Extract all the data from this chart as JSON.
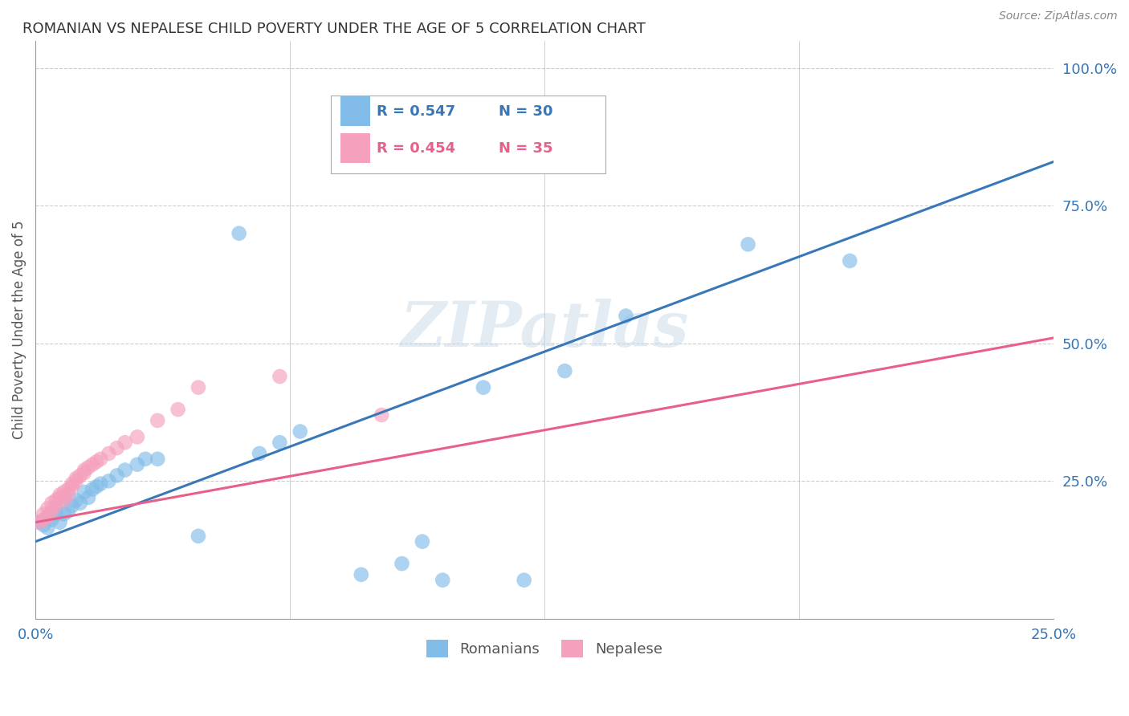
{
  "title": "ROMANIAN VS NEPALESE CHILD POVERTY UNDER THE AGE OF 5 CORRELATION CHART",
  "source": "Source: ZipAtlas.com",
  "ylabel": "Child Poverty Under the Age of 5",
  "ytick_labels": [
    "100.0%",
    "75.0%",
    "50.0%",
    "25.0%"
  ],
  "ytick_values": [
    1.0,
    0.75,
    0.5,
    0.25
  ],
  "watermark": "ZIPatlas",
  "legend_label1": "Romanians",
  "legend_label2": "Nepalese",
  "blue_color": "#82bce8",
  "pink_color": "#f5a0bc",
  "blue_line_color": "#3878b8",
  "pink_line_color": "#e8608a",
  "roman_scatter_x": [
    0.001,
    0.002,
    0.003,
    0.003,
    0.004,
    0.005,
    0.005,
    0.006,
    0.007,
    0.007,
    0.008,
    0.009,
    0.01,
    0.011,
    0.012,
    0.013,
    0.014,
    0.015,
    0.016,
    0.018,
    0.02,
    0.022,
    0.025,
    0.027,
    0.03,
    0.055,
    0.06,
    0.065,
    0.08,
    0.095,
    0.1,
    0.12,
    0.145,
    0.2,
    0.05,
    0.13,
    0.175,
    0.09,
    0.04,
    0.11
  ],
  "roman_scatter_y": [
    0.175,
    0.17,
    0.185,
    0.165,
    0.18,
    0.19,
    0.2,
    0.175,
    0.19,
    0.22,
    0.195,
    0.205,
    0.215,
    0.21,
    0.23,
    0.22,
    0.235,
    0.24,
    0.245,
    0.25,
    0.26,
    0.27,
    0.28,
    0.29,
    0.29,
    0.3,
    0.32,
    0.34,
    0.08,
    0.14,
    0.07,
    0.07,
    0.55,
    0.65,
    0.7,
    0.45,
    0.68,
    0.1,
    0.15,
    0.42
  ],
  "nepal_scatter_x": [
    0.001,
    0.002,
    0.002,
    0.003,
    0.003,
    0.004,
    0.004,
    0.005,
    0.005,
    0.006,
    0.006,
    0.007,
    0.007,
    0.008,
    0.008,
    0.009,
    0.009,
    0.01,
    0.01,
    0.011,
    0.012,
    0.012,
    0.013,
    0.014,
    0.015,
    0.016,
    0.018,
    0.02,
    0.022,
    0.025,
    0.03,
    0.035,
    0.04,
    0.06,
    0.085
  ],
  "nepal_scatter_y": [
    0.175,
    0.18,
    0.19,
    0.185,
    0.2,
    0.195,
    0.21,
    0.205,
    0.215,
    0.22,
    0.225,
    0.215,
    0.23,
    0.225,
    0.235,
    0.24,
    0.245,
    0.25,
    0.255,
    0.26,
    0.265,
    0.27,
    0.275,
    0.28,
    0.285,
    0.29,
    0.3,
    0.31,
    0.32,
    0.33,
    0.36,
    0.38,
    0.42,
    0.44,
    0.37
  ],
  "xlim": [
    0.0,
    0.25
  ],
  "ylim": [
    0.0,
    1.05
  ],
  "blue_line_x": [
    0.0,
    0.25
  ],
  "blue_line_y": [
    0.14,
    0.83
  ],
  "pink_line_x": [
    0.0,
    0.25
  ],
  "pink_line_y": [
    0.175,
    0.51
  ]
}
